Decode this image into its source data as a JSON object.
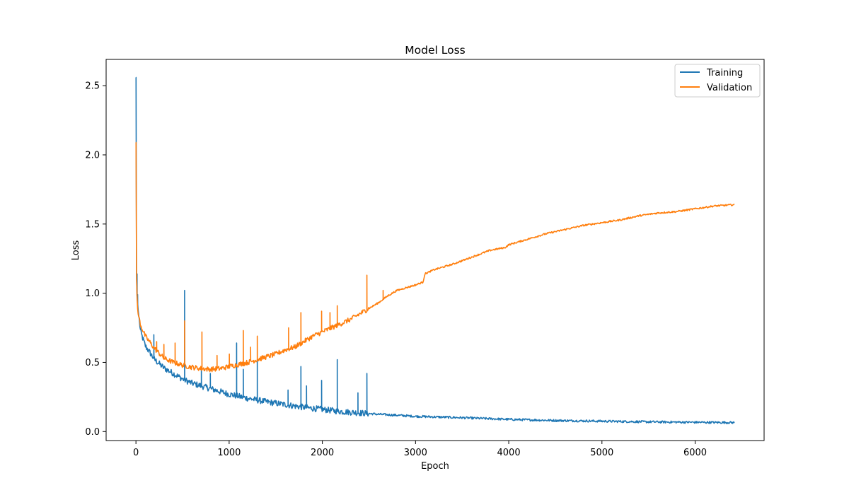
{
  "chart_data": {
    "type": "line",
    "title": "Model Loss",
    "xlabel": "Epoch",
    "ylabel": "Loss",
    "xlim": [
      -320,
      6740
    ],
    "ylim": [
      -0.065,
      2.69
    ],
    "xticks": [
      0,
      1000,
      2000,
      3000,
      4000,
      5000,
      6000
    ],
    "yticks": [
      0.0,
      0.5,
      1.0,
      1.5,
      2.0,
      2.5
    ],
    "xtick_labels": [
      "0",
      "1000",
      "2000",
      "3000",
      "4000",
      "5000",
      "6000"
    ],
    "ytick_labels": [
      "0.0",
      "0.5",
      "1.0",
      "1.5",
      "2.0",
      "2.5"
    ],
    "grid": false,
    "legend_position": "top-right",
    "x_max": 6420,
    "series": [
      {
        "name": "Training",
        "color": "#1f77b4",
        "trend": [
          [
            0,
            2.56
          ],
          [
            5,
            1.13
          ],
          [
            10,
            1.0
          ],
          [
            20,
            0.9
          ],
          [
            50,
            0.72
          ],
          [
            100,
            0.62
          ],
          [
            200,
            0.52
          ],
          [
            300,
            0.46
          ],
          [
            400,
            0.42
          ],
          [
            500,
            0.38
          ],
          [
            600,
            0.35
          ],
          [
            700,
            0.33
          ],
          [
            800,
            0.31
          ],
          [
            900,
            0.29
          ],
          [
            1000,
            0.27
          ],
          [
            1200,
            0.24
          ],
          [
            1400,
            0.215
          ],
          [
            1600,
            0.195
          ],
          [
            1800,
            0.175
          ],
          [
            2000,
            0.16
          ],
          [
            2200,
            0.145
          ],
          [
            2400,
            0.135
          ],
          [
            2600,
            0.125
          ],
          [
            2800,
            0.118
          ],
          [
            3000,
            0.11
          ],
          [
            3500,
            0.1
          ],
          [
            4000,
            0.088
          ],
          [
            4500,
            0.08
          ],
          [
            5000,
            0.075
          ],
          [
            5500,
            0.07
          ],
          [
            6000,
            0.067
          ],
          [
            6420,
            0.065
          ]
        ],
        "spikes": [
          [
            0,
            2.56
          ],
          [
            10,
            1.14
          ],
          [
            15,
            0.99
          ],
          [
            190,
            0.7
          ],
          [
            520,
            1.02
          ],
          [
            700,
            0.46
          ],
          [
            800,
            0.42
          ],
          [
            1080,
            0.64
          ],
          [
            1150,
            0.45
          ],
          [
            1300,
            0.52
          ],
          [
            1630,
            0.3
          ],
          [
            1770,
            0.47
          ],
          [
            1830,
            0.33
          ],
          [
            1990,
            0.37
          ],
          [
            2160,
            0.52
          ],
          [
            2380,
            0.28
          ],
          [
            2480,
            0.42
          ]
        ]
      },
      {
        "name": "Validation",
        "color": "#ff7f0e",
        "trend": [
          [
            0,
            2.09
          ],
          [
            5,
            1.2
          ],
          [
            10,
            1.0
          ],
          [
            20,
            0.86
          ],
          [
            50,
            0.77
          ],
          [
            100,
            0.69
          ],
          [
            200,
            0.6
          ],
          [
            300,
            0.53
          ],
          [
            400,
            0.5
          ],
          [
            500,
            0.48
          ],
          [
            600,
            0.465
          ],
          [
            700,
            0.455
          ],
          [
            800,
            0.45
          ],
          [
            900,
            0.455
          ],
          [
            1000,
            0.47
          ],
          [
            1100,
            0.485
          ],
          [
            1200,
            0.5
          ],
          [
            1300,
            0.52
          ],
          [
            1400,
            0.54
          ],
          [
            1500,
            0.56
          ],
          [
            1600,
            0.59
          ],
          [
            1700,
            0.61
          ],
          [
            1800,
            0.65
          ],
          [
            1900,
            0.69
          ],
          [
            2000,
            0.72
          ],
          [
            2100,
            0.75
          ],
          [
            2200,
            0.78
          ],
          [
            2300,
            0.81
          ],
          [
            2400,
            0.85
          ],
          [
            2500,
            0.89
          ],
          [
            2600,
            0.93
          ],
          [
            2700,
            0.98
          ],
          [
            2800,
            1.02
          ],
          [
            2900,
            1.04
          ],
          [
            3000,
            1.06
          ],
          [
            3080,
            1.08
          ],
          [
            3100,
            1.14
          ],
          [
            3200,
            1.17
          ],
          [
            3400,
            1.21
          ],
          [
            3600,
            1.26
          ],
          [
            3800,
            1.31
          ],
          [
            3960,
            1.33
          ],
          [
            4000,
            1.35
          ],
          [
            4200,
            1.39
          ],
          [
            4400,
            1.43
          ],
          [
            4600,
            1.46
          ],
          [
            4800,
            1.49
          ],
          [
            5000,
            1.51
          ],
          [
            5200,
            1.53
          ],
          [
            5400,
            1.56
          ],
          [
            5600,
            1.58
          ],
          [
            5800,
            1.59
          ],
          [
            6000,
            1.61
          ],
          [
            6200,
            1.63
          ],
          [
            6420,
            1.64
          ]
        ],
        "spikes": [
          [
            0,
            2.09
          ],
          [
            220,
            0.65
          ],
          [
            300,
            0.63
          ],
          [
            420,
            0.64
          ],
          [
            520,
            0.8
          ],
          [
            710,
            0.72
          ],
          [
            870,
            0.55
          ],
          [
            1000,
            0.56
          ],
          [
            1150,
            0.73
          ],
          [
            1230,
            0.61
          ],
          [
            1300,
            0.69
          ],
          [
            1640,
            0.75
          ],
          [
            1770,
            0.86
          ],
          [
            1990,
            0.87
          ],
          [
            2080,
            0.86
          ],
          [
            2160,
            0.91
          ],
          [
            2480,
            1.13
          ],
          [
            2650,
            1.02
          ]
        ]
      }
    ]
  }
}
